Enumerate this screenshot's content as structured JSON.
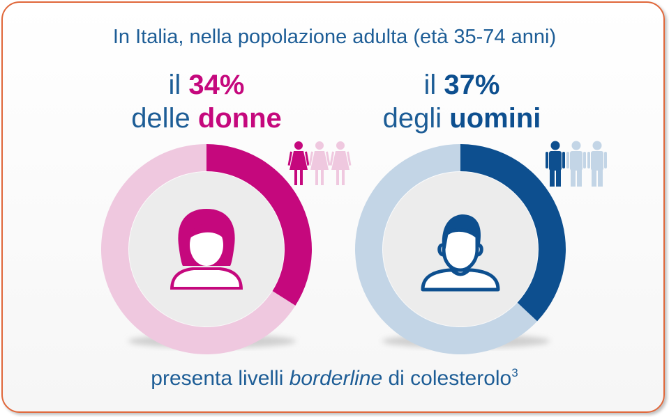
{
  "title": "In Italia, nella popolazione adulta (età 35-74 anni)",
  "women": {
    "line1_prefix": "il ",
    "percent_label": "34%",
    "line2_prefix": "delle ",
    "group_label": "donne"
  },
  "men": {
    "line1_prefix": "il ",
    "percent_label": "37%",
    "line2_prefix": "degli ",
    "group_label": "uomini"
  },
  "footer": {
    "text_before": "presenta livelli ",
    "text_italic": "borderline",
    "text_after": " di colesterolo",
    "superscript": "3"
  },
  "colors": {
    "women_primary": "#c5087d",
    "women_light": "#efc8df",
    "men_primary": "#0d4f8f",
    "men_light": "#c3d5e6",
    "text": "#1d5d96",
    "border": "#e0673a"
  },
  "chart_data": [
    {
      "type": "pie",
      "name": "donne",
      "values": [
        34,
        66
      ],
      "highlight_percent": 34
    },
    {
      "type": "pie",
      "name": "uomini",
      "values": [
        37,
        63
      ],
      "highlight_percent": 37
    }
  ]
}
